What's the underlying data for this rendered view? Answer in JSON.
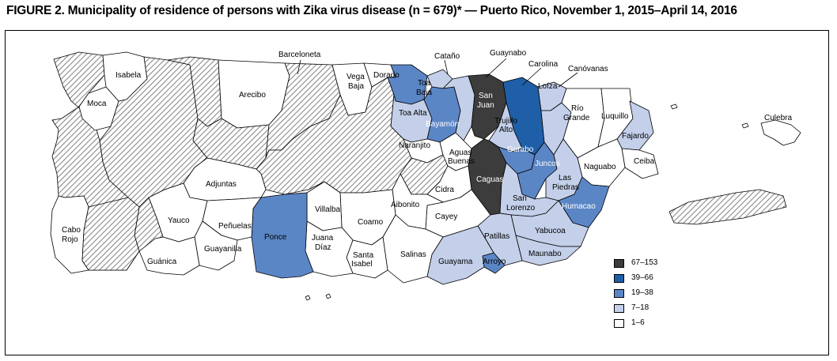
{
  "figure": {
    "title": "FIGURE 2. Municipality of residence of persons with Zika virus disease (n = 679)* — Puerto Rico, November 1, 2015–April 14, 2016"
  },
  "colors": {
    "c67_153": "#3c3c3c",
    "c39_66": "#1f5fa8",
    "c19_38": "#5b86c6",
    "c7_18": "#c4d0ea",
    "c1_6": "#ffffff",
    "hatched": "#9a9a9a"
  },
  "legend": {
    "items": [
      {
        "label": "67–153",
        "color": "#3c3c3c"
      },
      {
        "label": "39–66",
        "color": "#1f5fa8"
      },
      {
        "label": "19–38",
        "color": "#5b86c6"
      },
      {
        "label": "7–18",
        "color": "#c4d0ea"
      },
      {
        "label": "1–6",
        "color": "#ffffff"
      }
    ]
  },
  "labels": {
    "barceloneta": "Barceloneta",
    "catano": "Cataño",
    "guaynabo": "Guaynabo",
    "carolina": "Carolina",
    "canovanas": "Canóvanas",
    "isabela": "Isabela",
    "vega_baja_1": "Vega",
    "vega_baja_2": "Baja",
    "dorado": "Dorado",
    "toa_baja_1": "Toa",
    "toa_baja_2": "Baja",
    "san_juan_1": "San",
    "san_juan_2": "Juan",
    "loiza": "Loíza",
    "arecibo": "Arecibo",
    "moca": "Moca",
    "toa_alta": "Toa Alta",
    "rio_grande_1": "Río",
    "rio_grande_2": "Grande",
    "luquillo": "Luquillo",
    "culebra": "Culebra",
    "bayamon": "Bayamón",
    "trujillo_alto_1": "Trujillo",
    "trujillo_alto_2": "Alto",
    "fajardo": "Fajardo",
    "naranjito": "Naranjito",
    "aguas_buenas_1": "Aguas",
    "aguas_buenas_2": "Buenas",
    "gurabo": "Gurabo",
    "juncos": "Juncos",
    "naguabo": "Naguabo",
    "ceiba": "Ceiba",
    "adjuntas": "Adjuntas",
    "caguas": "Caguas",
    "las_piedras_1": "Las",
    "las_piedras_2": "Piedras",
    "cidra": "Cidra",
    "aibonito": "Aibonito",
    "san_lorenzo_1": "San",
    "san_lorenzo_2": "Lorenzo",
    "humacao": "Humacao",
    "villalba": "Villalba",
    "yauco": "Yauco",
    "coamo": "Coamo",
    "cayey": "Cayey",
    "cabo_rojo_1": "Cabo",
    "cabo_rojo_2": "Rojo",
    "penuelas": "Peñuelas",
    "yabucoa": "Yabucoa",
    "guayanilla": "Guayanilla",
    "patillas": "Patillas",
    "ponce": "Ponce",
    "juana_diaz_1": "Juana",
    "juana_diaz_2": "Díaz",
    "maunabo": "Maunabo",
    "santa_isabel_1": "Santa",
    "santa_isabel_2": "Isabel",
    "salinas": "Salinas",
    "guanica": "Guánica",
    "guayama": "Guayama",
    "arroyo": "Arroyo"
  }
}
